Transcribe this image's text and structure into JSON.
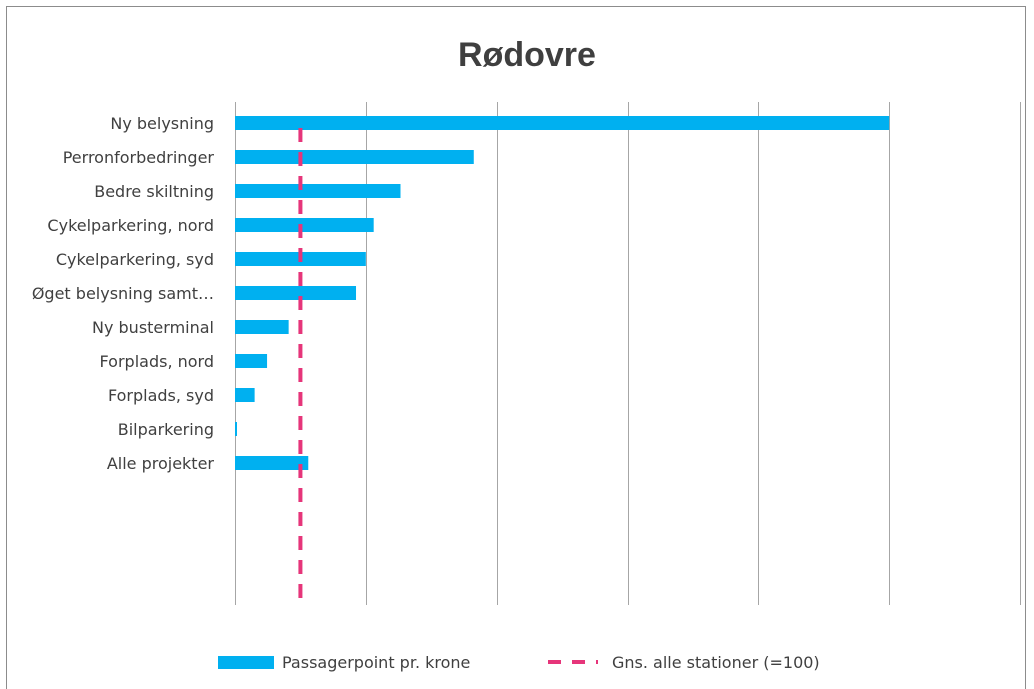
{
  "chart_data": {
    "type": "bar",
    "orientation": "horizontal",
    "title": "Rødovre",
    "categories": [
      "Ny belysning",
      "Perronforbedringer",
      "Bedre skiltning",
      "Cykelparkering, nord",
      "Cykelparkering, syd",
      "Øget belysning samt…",
      "Ny busterminal",
      "Forplads, nord",
      "Forplads, syd",
      "Bilparkering",
      "Alle projekter"
    ],
    "series": [
      {
        "name": "Passagerpoint pr. krone",
        "color": "#00b0f0",
        "values": [
          1000,
          365,
          253,
          212,
          200,
          185,
          82,
          49,
          30,
          2,
          112
        ]
      }
    ],
    "reference_line": {
      "name": "Gns. alle stationer (=100)",
      "value": 100,
      "color": "#e6357a",
      "style": "dashed"
    },
    "xlim": [
      0,
      1200
    ],
    "x_gridlines": [
      0,
      200,
      400,
      600,
      800,
      1000,
      1200
    ],
    "x_tick_labels_shown": false,
    "grid": true,
    "legend_position": "bottom"
  }
}
